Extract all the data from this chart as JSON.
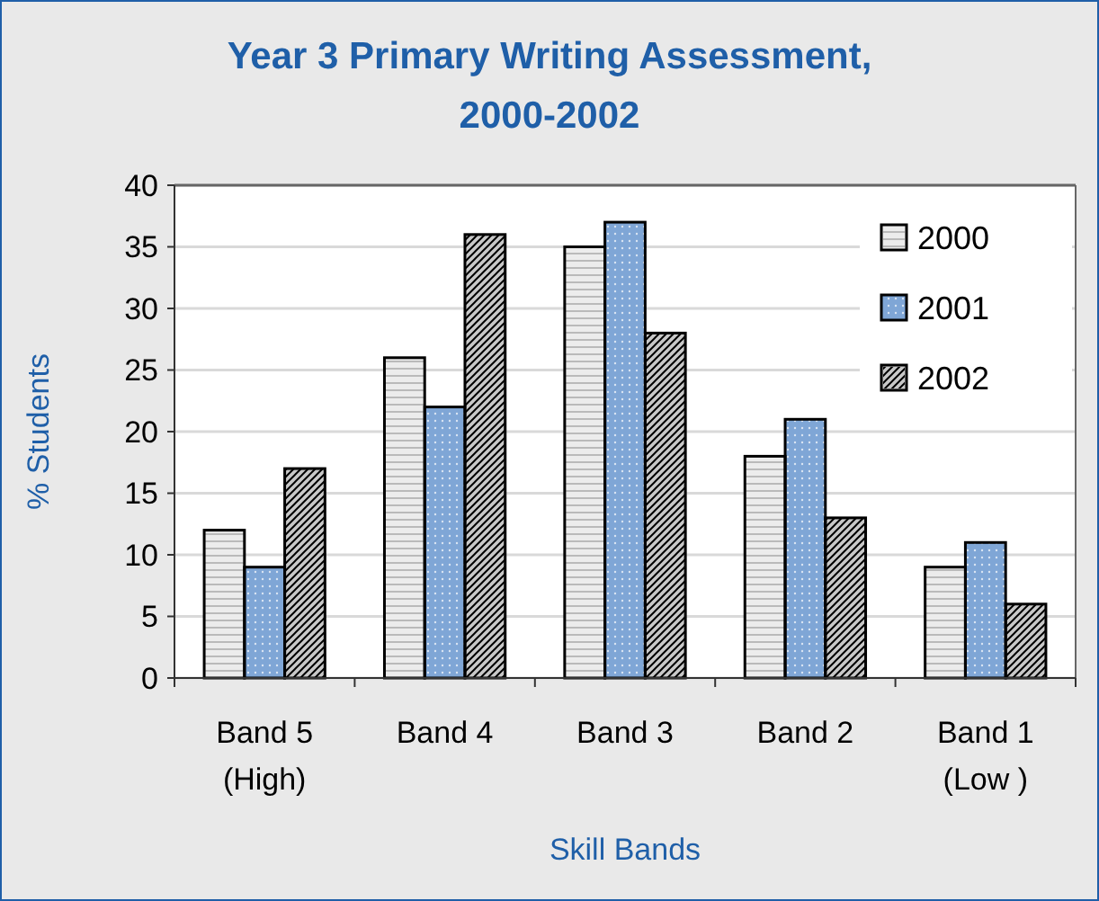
{
  "chart_data": {
    "type": "bar",
    "title": "Year 3 Primary Writing Assessment,\n2000-2002",
    "xlabel": "Skill Bands",
    "ylabel": "% Students",
    "categories": [
      "Band 5\n(High)",
      "Band 4",
      "Band 3",
      "Band 2",
      "Band 1\n(Low )"
    ],
    "series": [
      {
        "name": "2000",
        "color": "#ececec",
        "values": [
          12,
          26,
          35,
          18,
          9
        ]
      },
      {
        "name": "2001",
        "color": "#7fa6d6",
        "values": [
          9,
          22,
          37,
          21,
          11
        ]
      },
      {
        "name": "2002",
        "color": "#c8c8c8",
        "values": [
          17,
          36,
          28,
          13,
          6
        ]
      }
    ],
    "ylim": [
      0,
      40
    ],
    "yticks": [
      0,
      5,
      10,
      15,
      20,
      25,
      30,
      35,
      40
    ],
    "grid": "y",
    "legend": "top right"
  }
}
